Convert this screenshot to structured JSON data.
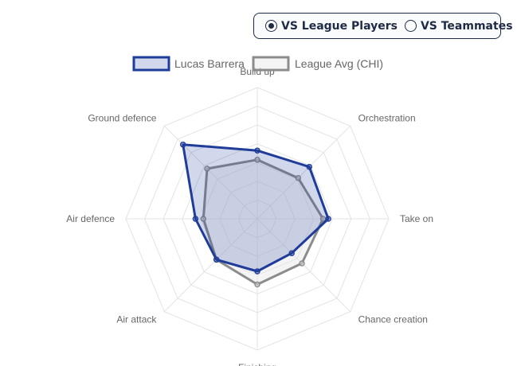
{
  "toggle": {
    "options": [
      {
        "label": "VS League Players",
        "selected": true
      },
      {
        "label": "VS Teammates",
        "selected": false
      }
    ]
  },
  "chart_data": {
    "type": "radar",
    "axes": [
      "Build up",
      "Orchestration",
      "Take on",
      "Chance creation",
      "Finishing",
      "Air attack",
      "Air defence",
      "Ground defence"
    ],
    "rmax": 100,
    "rings": 7,
    "legend_position": "top-center",
    "series": [
      {
        "name": "Lucas Barrera",
        "values": [
          52,
          56,
          54,
          37,
          40,
          44,
          47,
          80
        ],
        "stroke": "#1f3c99",
        "fill": "rgba(31,60,153,0.2)"
      },
      {
        "name": "League Avg (CHI)",
        "values": [
          45,
          44,
          50,
          48,
          50,
          44,
          41,
          54
        ],
        "stroke": "#8c8c8c",
        "fill": "rgba(230,230,230,0.45)"
      }
    ]
  }
}
